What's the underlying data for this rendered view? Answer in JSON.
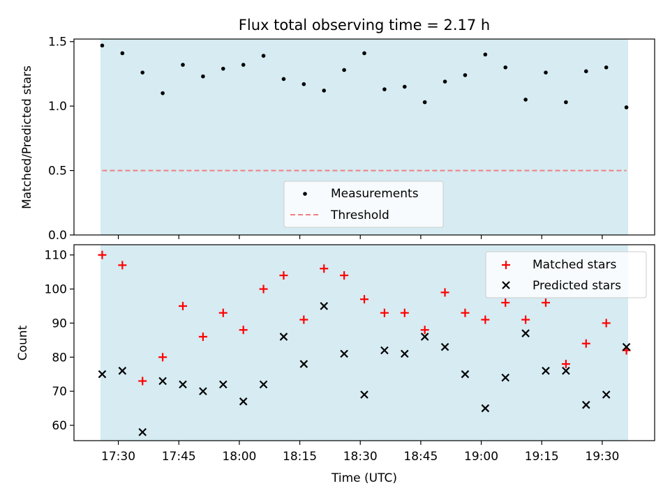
{
  "chart_data": [
    {
      "type": "scatter",
      "title": "Flux total observing time = 2.17 h",
      "xlabel": "",
      "ylabel": "Matched/Predicted stars",
      "ylim": [
        0,
        1.52
      ],
      "yticks": [
        "0.0",
        "0.5",
        "1.0",
        "1.5"
      ],
      "shaded_span": [
        "17:26",
        "19:36"
      ],
      "shade_color": "#add8e6",
      "threshold": {
        "name": "Threshold",
        "value": 0.5,
        "color": "#f08080",
        "style": "dashed"
      },
      "legend": {
        "placement": "lower-center",
        "entries": [
          "Measurements",
          "Threshold"
        ]
      },
      "series": [
        {
          "name": "Measurements",
          "color": "#000000",
          "marker": "dot",
          "x": [
            "17:26",
            "17:31",
            "17:36",
            "17:41",
            "17:46",
            "17:51",
            "17:56",
            "18:01",
            "18:06",
            "18:11",
            "18:16",
            "18:21",
            "18:26",
            "18:31",
            "18:36",
            "18:41",
            "18:46",
            "18:51",
            "18:56",
            "19:01",
            "19:06",
            "19:11",
            "19:16",
            "19:21",
            "19:26",
            "19:31",
            "19:36"
          ],
          "y": [
            1.47,
            1.41,
            1.26,
            1.1,
            1.32,
            1.23,
            1.29,
            1.32,
            1.39,
            1.21,
            1.17,
            1.12,
            1.28,
            1.41,
            1.13,
            1.15,
            1.03,
            1.19,
            1.24,
            1.4,
            1.3,
            1.05,
            1.26,
            1.03,
            1.27,
            1.3,
            0.99
          ]
        }
      ]
    },
    {
      "type": "scatter",
      "title": "",
      "xlabel": "Time (UTC)",
      "ylabel": "Count",
      "ylim": [
        55.5,
        113
      ],
      "yticks": [
        "60",
        "70",
        "80",
        "90",
        "100",
        "110"
      ],
      "xticks": [
        "17:30",
        "17:45",
        "18:00",
        "18:15",
        "18:30",
        "18:45",
        "19:00",
        "19:15",
        "19:30"
      ],
      "xlim": [
        "17:19",
        "19:43"
      ],
      "shaded_span": [
        "17:26",
        "19:36"
      ],
      "shade_color": "#add8e6",
      "legend": {
        "placement": "top-right",
        "entries": [
          "Matched stars",
          "Predicted stars"
        ]
      },
      "series": [
        {
          "name": "Matched stars",
          "color": "#ff0000",
          "marker": "plus",
          "x": [
            "17:26",
            "17:31",
            "17:36",
            "17:41",
            "17:46",
            "17:51",
            "17:56",
            "18:01",
            "18:06",
            "18:11",
            "18:16",
            "18:21",
            "18:26",
            "18:31",
            "18:36",
            "18:41",
            "18:46",
            "18:51",
            "18:56",
            "19:01",
            "19:06",
            "19:11",
            "19:16",
            "19:21",
            "19:26",
            "19:31",
            "19:36"
          ],
          "y": [
            110,
            107,
            73,
            80,
            95,
            86,
            93,
            88,
            100,
            104,
            91,
            106,
            104,
            97,
            93,
            93,
            88,
            99,
            93,
            91,
            96,
            91,
            96,
            78,
            84,
            90,
            82
          ]
        },
        {
          "name": "Predicted stars",
          "color": "#000000",
          "marker": "x",
          "x": [
            "17:26",
            "17:31",
            "17:36",
            "17:41",
            "17:46",
            "17:51",
            "17:56",
            "18:01",
            "18:06",
            "18:11",
            "18:16",
            "18:21",
            "18:26",
            "18:31",
            "18:36",
            "18:41",
            "18:46",
            "18:51",
            "18:56",
            "19:01",
            "19:06",
            "19:11",
            "19:16",
            "19:21",
            "19:26",
            "19:31",
            "19:36"
          ],
          "y": [
            75,
            76,
            58,
            73,
            72,
            70,
            72,
            67,
            72,
            86,
            78,
            95,
            81,
            69,
            82,
            81,
            86,
            83,
            75,
            65,
            74,
            87,
            76,
            76,
            66,
            69,
            83
          ]
        }
      ]
    }
  ]
}
